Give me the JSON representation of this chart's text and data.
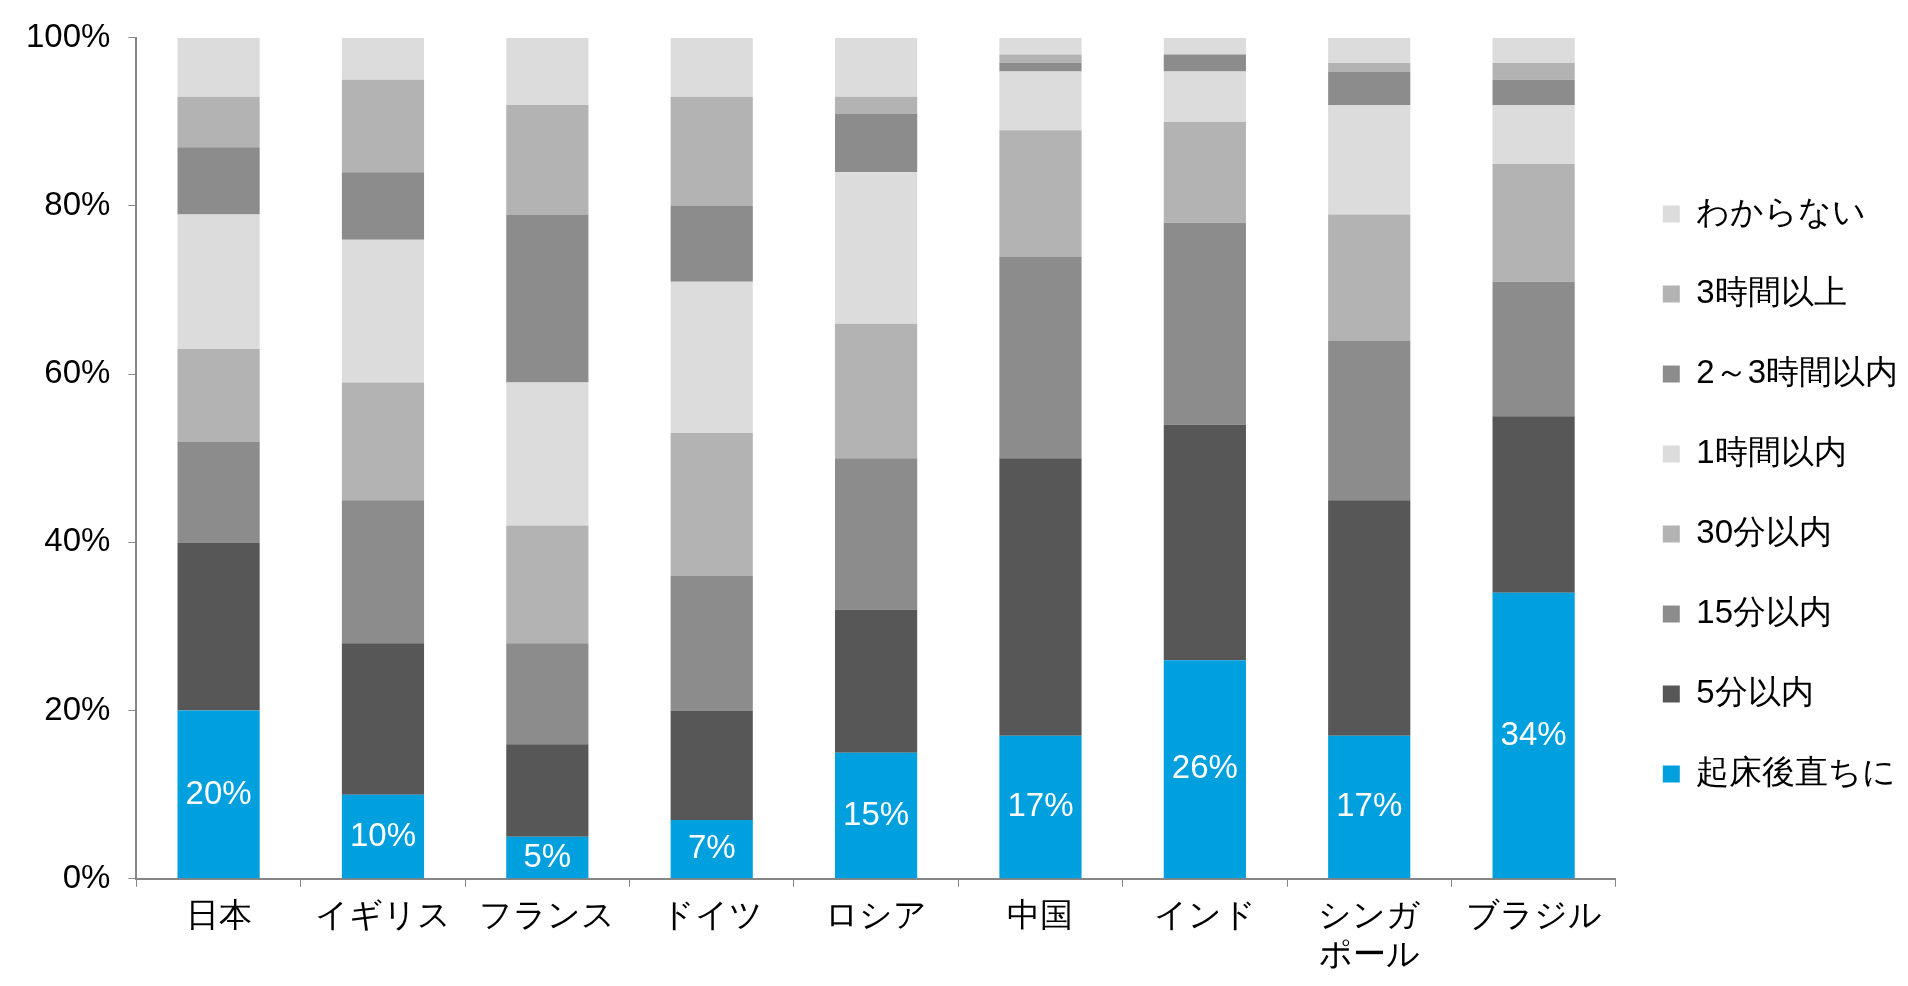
{
  "chart_data": {
    "type": "bar",
    "stacked": true,
    "legend": "right",
    "categories": [
      "日本",
      "イギリス",
      "フランス",
      "ドイツ",
      "ロシア",
      "中国",
      "インド",
      "シンガポール",
      "ブラジル"
    ],
    "ylim": [
      0,
      100
    ],
    "yticks": [
      {
        "value": 0,
        "label": "0%"
      },
      {
        "value": 20,
        "label": "20%"
      },
      {
        "value": 40,
        "label": "40%"
      },
      {
        "value": 60,
        "label": "60%"
      },
      {
        "value": 80,
        "label": "80%"
      },
      {
        "value": 100,
        "label": "100%"
      }
    ],
    "series": [
      {
        "name": "起床後直ちに",
        "color": "#00a0de",
        "values": [
          20,
          10,
          5,
          7,
          15,
          17,
          26,
          17,
          34
        ],
        "value_labels": [
          "20%",
          "10%",
          "5%",
          "7%",
          "15%",
          "17%",
          "26%",
          "17%",
          "34%"
        ]
      },
      {
        "name": "5分以内",
        "color": "#575757",
        "values": [
          20,
          18,
          11,
          13,
          17,
          33,
          28,
          28,
          21
        ]
      },
      {
        "name": "15分以内",
        "color": "#8c8c8c",
        "values": [
          12,
          17,
          12,
          16,
          18,
          24,
          24,
          19,
          16
        ]
      },
      {
        "name": "30分以内",
        "color": "#b3b3b3",
        "values": [
          11,
          14,
          14,
          17,
          16,
          15,
          12,
          15,
          14
        ]
      },
      {
        "name": "1時間以内",
        "color": "#dcdcdc",
        "values": [
          16,
          17,
          17,
          18,
          18,
          7,
          6,
          13,
          7
        ]
      },
      {
        "name": "2～3時間以内",
        "color": "#8c8c8c",
        "values": [
          8,
          8,
          20,
          9,
          7,
          1,
          2,
          4,
          3
        ]
      },
      {
        "name": "3時間以上",
        "color": "#b3b3b3",
        "values": [
          6,
          11,
          13,
          13,
          2,
          1,
          0,
          1,
          2
        ]
      },
      {
        "name": "わからない",
        "color": "#dcdcdc",
        "values": [
          7,
          5,
          8,
          7,
          7,
          2,
          2,
          3,
          3
        ]
      }
    ]
  }
}
